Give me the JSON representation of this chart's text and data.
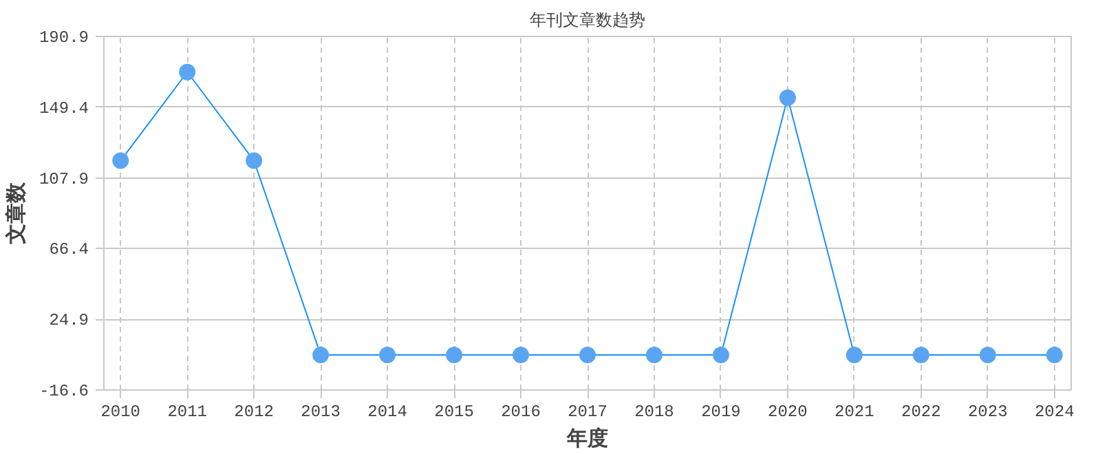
{
  "chart_data": {
    "type": "line",
    "title": "年刊文章数趋势",
    "xlabel": "年度",
    "ylabel": "文章数",
    "categories": [
      "2010",
      "2011",
      "2012",
      "2013",
      "2014",
      "2015",
      "2016",
      "2017",
      "2018",
      "2019",
      "2020",
      "2021",
      "2022",
      "2023",
      "2024"
    ],
    "series": [
      {
        "color": "#5aa5f2",
        "values": [
          118,
          170,
          118,
          4,
          4,
          4,
          4,
          4,
          4,
          4,
          155,
          4,
          4,
          4,
          4
        ]
      }
    ],
    "ylim": [
      -16.6,
      190.9
    ],
    "yticks": [
      -16.6,
      24.9,
      66.4,
      107.9,
      149.4,
      190.9
    ],
    "grid": true,
    "marker": "circle",
    "line_style": "solid"
  }
}
